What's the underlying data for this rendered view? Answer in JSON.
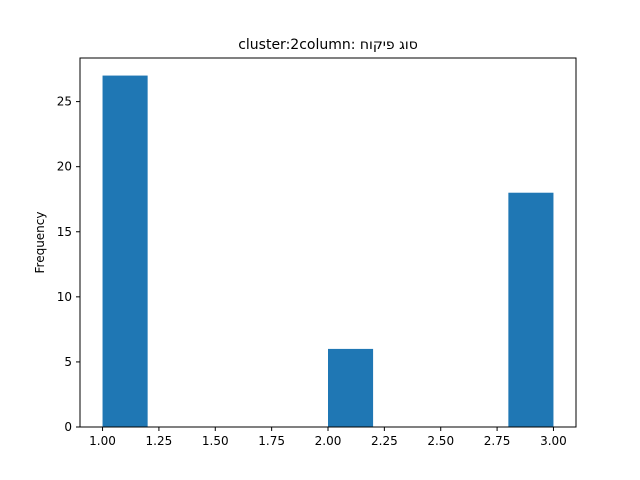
{
  "chart_data": {
    "type": "bar",
    "title": "cluster:2column: סוג פיקוח",
    "xlabel": "",
    "ylabel": "Frequency",
    "bins": [
      {
        "x0": 1.0,
        "x1": 1.2,
        "count": 27
      },
      {
        "x0": 1.2,
        "x1": 1.4,
        "count": 0
      },
      {
        "x0": 1.4,
        "x1": 1.6,
        "count": 0
      },
      {
        "x0": 1.6,
        "x1": 1.8,
        "count": 0
      },
      {
        "x0": 1.8,
        "x1": 2.0,
        "count": 0
      },
      {
        "x0": 2.0,
        "x1": 2.2,
        "count": 6
      },
      {
        "x0": 2.2,
        "x1": 2.4,
        "count": 0
      },
      {
        "x0": 2.4,
        "x1": 2.6,
        "count": 0
      },
      {
        "x0": 2.6,
        "x1": 2.8,
        "count": 0
      },
      {
        "x0": 2.8,
        "x1": 3.0,
        "count": 18
      }
    ],
    "xlim": [
      0.9,
      3.1
    ],
    "ylim": [
      0,
      28.35
    ],
    "x_ticks": [
      1.0,
      1.25,
      1.5,
      1.75,
      2.0,
      2.25,
      2.5,
      2.75,
      3.0
    ],
    "x_tick_labels": [
      "1.00",
      "1.25",
      "1.50",
      "1.75",
      "2.00",
      "2.25",
      "2.50",
      "2.75",
      "3.00"
    ],
    "y_ticks": [
      0,
      5,
      10,
      15,
      20,
      25
    ],
    "y_tick_labels": [
      "0",
      "5",
      "10",
      "15",
      "20",
      "25"
    ],
    "bar_color": "#1f77b4",
    "grid": false
  }
}
